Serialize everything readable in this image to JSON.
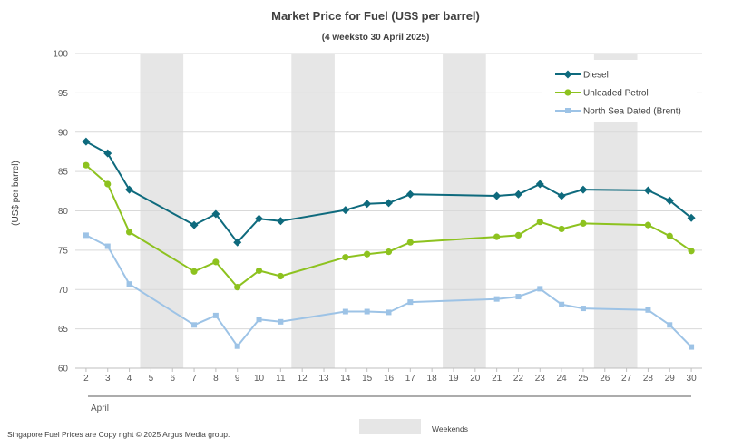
{
  "chart_data": {
    "type": "line",
    "title": "Market Price for Fuel (US$ per barrel)",
    "subtitle": "(4 weeksto 30 April 2025)",
    "ylabel": "(US$ per barrel)",
    "xlabel": "April",
    "ylim": [
      60,
      100
    ],
    "yticks": [
      60,
      65,
      70,
      75,
      80,
      85,
      90,
      95,
      100
    ],
    "x": [
      2,
      3,
      4,
      5,
      6,
      7,
      8,
      9,
      10,
      11,
      12,
      13,
      14,
      15,
      16,
      17,
      18,
      19,
      20,
      21,
      22,
      23,
      24,
      25,
      26,
      27,
      28,
      29,
      30
    ],
    "grid": true,
    "legend_position": "top-right",
    "weekends": [
      [
        5,
        6
      ],
      [
        12,
        13
      ],
      [
        19,
        20
      ],
      [
        26,
        27
      ]
    ],
    "weekend_legend": "Weekends",
    "series": [
      {
        "name": "Diesel",
        "color": "#0e6a7d",
        "marker": "diamond",
        "points": [
          [
            2,
            88.8
          ],
          [
            3,
            87.3
          ],
          [
            4,
            82.7
          ],
          [
            7,
            78.2
          ],
          [
            8,
            79.6
          ],
          [
            9,
            76.0
          ],
          [
            10,
            79.0
          ],
          [
            11,
            78.7
          ],
          [
            14,
            80.1
          ],
          [
            15,
            80.9
          ],
          [
            16,
            81.0
          ],
          [
            17,
            82.1
          ],
          [
            21,
            81.9
          ],
          [
            22,
            82.1
          ],
          [
            23,
            83.4
          ],
          [
            24,
            81.9
          ],
          [
            25,
            82.7
          ],
          [
            28,
            82.6
          ],
          [
            29,
            81.3
          ],
          [
            30,
            79.1
          ]
        ]
      },
      {
        "name": "Unleaded Petrol",
        "color": "#8dc21f",
        "marker": "circle",
        "points": [
          [
            2,
            85.8
          ],
          [
            3,
            83.4
          ],
          [
            4,
            77.3
          ],
          [
            7,
            72.3
          ],
          [
            8,
            73.5
          ],
          [
            9,
            70.3
          ],
          [
            10,
            72.4
          ],
          [
            11,
            71.7
          ],
          [
            14,
            74.1
          ],
          [
            15,
            74.5
          ],
          [
            16,
            74.8
          ],
          [
            17,
            76.0
          ],
          [
            21,
            76.7
          ],
          [
            22,
            76.9
          ],
          [
            23,
            78.6
          ],
          [
            24,
            77.7
          ],
          [
            25,
            78.4
          ],
          [
            28,
            78.2
          ],
          [
            29,
            76.8
          ],
          [
            30,
            74.9
          ]
        ]
      },
      {
        "name": "North Sea Dated (Brent)",
        "color": "#9dc3e6",
        "marker": "square",
        "points": [
          [
            2,
            76.9
          ],
          [
            3,
            75.5
          ],
          [
            4,
            70.7
          ],
          [
            7,
            65.5
          ],
          [
            8,
            66.7
          ],
          [
            9,
            62.8
          ],
          [
            10,
            66.2
          ],
          [
            11,
            65.9
          ],
          [
            14,
            67.2
          ],
          [
            15,
            67.2
          ],
          [
            16,
            67.1
          ],
          [
            17,
            68.4
          ],
          [
            21,
            68.8
          ],
          [
            22,
            69.1
          ],
          [
            23,
            70.1
          ],
          [
            24,
            68.1
          ],
          [
            25,
            67.6
          ],
          [
            28,
            67.4
          ],
          [
            29,
            65.5
          ],
          [
            30,
            62.7
          ]
        ]
      }
    ]
  },
  "footer": {
    "copyright": "Singapore Fuel Prices are Copy right © 2025 Argus Media group."
  }
}
